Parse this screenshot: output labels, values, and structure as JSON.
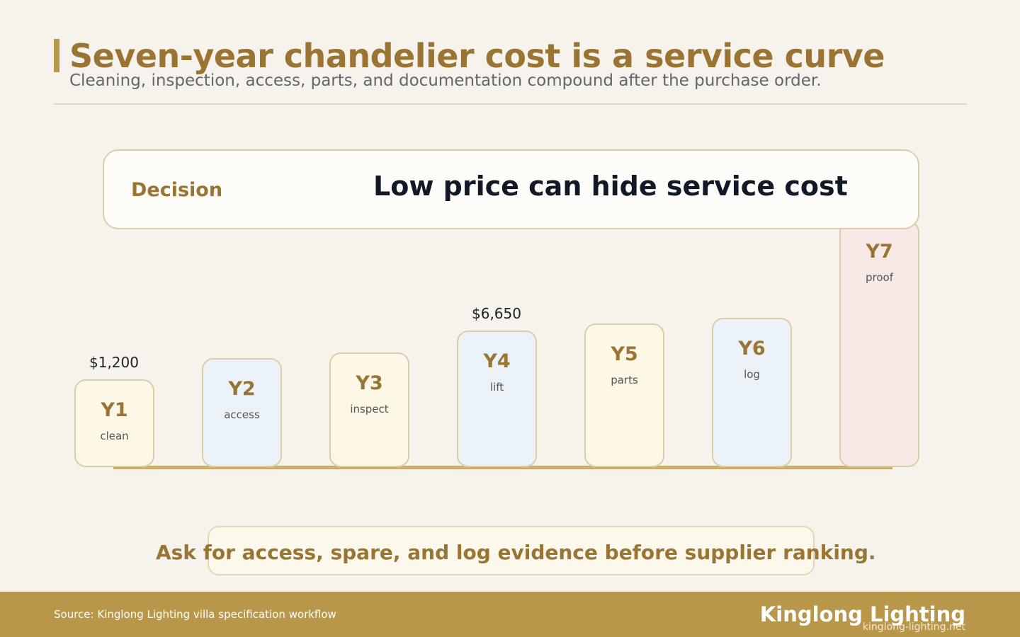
{
  "header": {
    "title": "Seven-year chandelier cost is a service curve",
    "subtitle": "Cleaning, inspection, access, parts, and documentation compound after the purchase order."
  },
  "decision": {
    "label": "Decision",
    "headline": "Low price can hide service cost"
  },
  "bars": [
    {
      "label": "Y1",
      "note": "clean",
      "value_label": "$1,200"
    },
    {
      "label": "Y2",
      "note": "access"
    },
    {
      "label": "Y3",
      "note": "inspect"
    },
    {
      "label": "Y4",
      "note": "lift",
      "value_label": "$6,650"
    },
    {
      "label": "Y5",
      "note": "parts"
    },
    {
      "label": "Y6",
      "note": "log"
    },
    {
      "label": "Y7",
      "note": "proof"
    }
  ],
  "callout": "Ask for access, spare, and log evidence before supplier ranking.",
  "footer": {
    "source": "Source: Kinglong Lighting villa specification workflow",
    "brand": "Kinglong Lighting",
    "url": "kinglong-lighting.net"
  }
}
